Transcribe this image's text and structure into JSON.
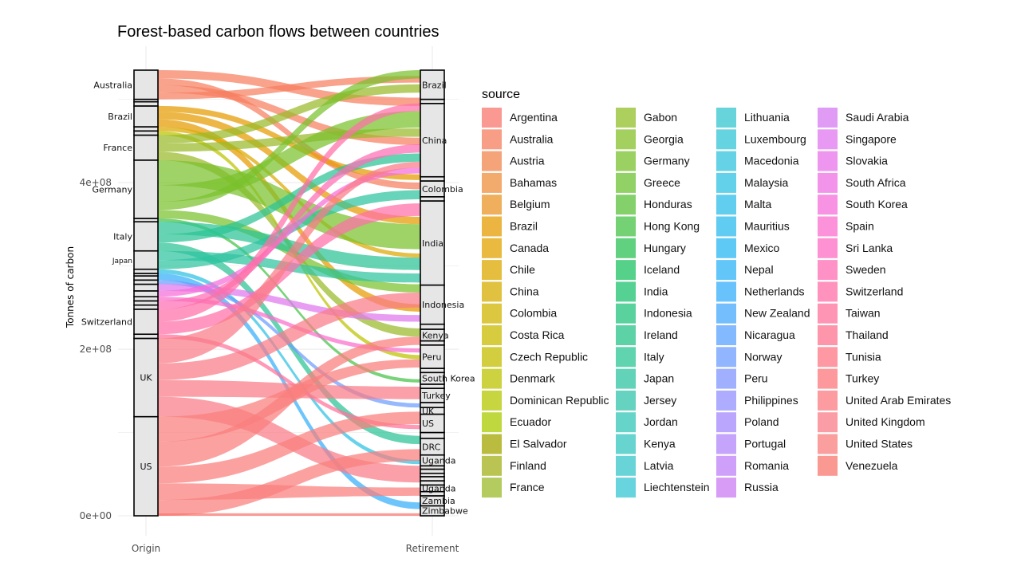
{
  "chart_data": {
    "type": "alluvial",
    "title": "Forest-based carbon flows between countries",
    "ylabel": "Tonnes of carbon",
    "xlabel": "",
    "x_axes": [
      "Origin",
      "Retirement"
    ],
    "ylim": [
      0,
      535000000
    ],
    "y_ticks": [
      {
        "value": 0,
        "label": "0e+00"
      },
      {
        "value": 200000000,
        "label": "2e+08"
      },
      {
        "value": 400000000,
        "label": "4e+08"
      }
    ],
    "grid": true,
    "legend": {
      "title": "source",
      "position": "right"
    },
    "origin_strata": [
      {
        "label": "US",
        "from": 0,
        "to": 119000000
      },
      {
        "label": "UK",
        "from": 119000000,
        "to": 213000000
      },
      {
        "label": "",
        "from": 213000000,
        "to": 218000000
      },
      {
        "label": "Switzerland",
        "from": 218000000,
        "to": 248000000
      },
      {
        "label": "",
        "from": 248000000,
        "to": 253000000
      },
      {
        "label": "",
        "from": 253000000,
        "to": 258000000
      },
      {
        "label": "",
        "from": 258000000,
        "to": 263000000
      },
      {
        "label": "",
        "from": 263000000,
        "to": 270000000
      },
      {
        "label": "",
        "from": 270000000,
        "to": 278000000
      },
      {
        "label": "",
        "from": 278000000,
        "to": 283000000
      },
      {
        "label": "",
        "from": 283000000,
        "to": 288000000
      },
      {
        "label": "",
        "from": 288000000,
        "to": 291000000
      },
      {
        "label": "",
        "from": 291000000,
        "to": 296000000
      },
      {
        "label": "Japan",
        "from": 296000000,
        "to": 318000000
      },
      {
        "label": "Italy",
        "from": 318000000,
        "to": 353000000
      },
      {
        "label": "",
        "from": 353000000,
        "to": 357000000
      },
      {
        "label": "Germany",
        "from": 357000000,
        "to": 427000000
      },
      {
        "label": "France",
        "from": 427000000,
        "to": 457000000
      },
      {
        "label": "",
        "from": 457000000,
        "to": 462000000
      },
      {
        "label": "",
        "from": 462000000,
        "to": 467000000
      },
      {
        "label": "Brazil",
        "from": 467000000,
        "to": 492000000
      },
      {
        "label": "",
        "from": 492000000,
        "to": 497000000
      },
      {
        "label": "",
        "from": 497000000,
        "to": 500000000
      },
      {
        "label": "Australia",
        "from": 500000000,
        "to": 535000000
      }
    ],
    "retirement_strata": [
      {
        "label": "Zimbabwe",
        "from": 0,
        "to": 12000000
      },
      {
        "label": "Zambia",
        "from": 12000000,
        "to": 24000000
      },
      {
        "label": "",
        "from": 24000000,
        "to": 29000000
      },
      {
        "label": "Uganda",
        "from": 29000000,
        "to": 37000000
      },
      {
        "label": "",
        "from": 37000000,
        "to": 42000000
      },
      {
        "label": "",
        "from": 42000000,
        "to": 47000000
      },
      {
        "label": "",
        "from": 47000000,
        "to": 51000000
      },
      {
        "label": "",
        "from": 51000000,
        "to": 56000000
      },
      {
        "label": "",
        "from": 56000000,
        "to": 60000000
      },
      {
        "label": "Uganda",
        "from": 60000000,
        "to": 73000000
      },
      {
        "label": "DRC",
        "from": 73000000,
        "to": 93000000
      },
      {
        "label": "",
        "from": 93000000,
        "to": 100000000
      },
      {
        "label": "US",
        "from": 100000000,
        "to": 122000000
      },
      {
        "label": "UK",
        "from": 122000000,
        "to": 130000000
      },
      {
        "label": "",
        "from": 130000000,
        "to": 136000000
      },
      {
        "label": "Turkey",
        "from": 136000000,
        "to": 153000000
      },
      {
        "label": "",
        "from": 153000000,
        "to": 158000000
      },
      {
        "label": "South Korea",
        "from": 158000000,
        "to": 172000000
      },
      {
        "label": "",
        "from": 172000000,
        "to": 177000000
      },
      {
        "label": "Peru",
        "from": 177000000,
        "to": 205000000
      },
      {
        "label": "",
        "from": 205000000,
        "to": 210000000
      },
      {
        "label": "Kenya",
        "from": 210000000,
        "to": 224000000
      },
      {
        "label": "",
        "from": 224000000,
        "to": 230000000
      },
      {
        "label": "Indonesia",
        "from": 230000000,
        "to": 277000000
      },
      {
        "label": "India",
        "from": 277000000,
        "to": 378000000
      },
      {
        "label": "",
        "from": 378000000,
        "to": 383000000
      },
      {
        "label": "Colombia",
        "from": 383000000,
        "to": 402000000
      },
      {
        "label": "",
        "from": 402000000,
        "to": 407000000
      },
      {
        "label": "China",
        "from": 407000000,
        "to": 495000000
      },
      {
        "label": "",
        "from": 495000000,
        "to": 500000000
      },
      {
        "label": "Brazil",
        "from": 500000000,
        "to": 535000000
      }
    ],
    "flows": [
      {
        "source": "Australia",
        "origin": [
          525000000,
          535000000
        ],
        "retirement": [
          492000000,
          502000000
        ]
      },
      {
        "source": "Australia",
        "origin": [
          517000000,
          525000000
        ],
        "retirement": [
          392000000,
          400000000
        ]
      },
      {
        "source": "Australia",
        "origin": [
          508000000,
          517000000
        ],
        "retirement": [
          445000000,
          454000000
        ]
      },
      {
        "source": "Australia",
        "origin": [
          500000000,
          508000000
        ],
        "retirement": [
          520000000,
          528000000
        ]
      },
      {
        "source": "Brazil",
        "origin": [
          485000000,
          492000000
        ],
        "retirement": [
          403000000,
          410000000
        ]
      },
      {
        "source": "Brazil",
        "origin": [
          476000000,
          485000000
        ],
        "retirement": [
          350000000,
          359000000
        ]
      },
      {
        "source": "Brazil",
        "origin": [
          467000000,
          476000000
        ],
        "retirement": [
          245000000,
          254000000
        ]
      },
      {
        "source": "Chile",
        "origin": [
          462000000,
          467000000
        ],
        "retirement": [
          310000000,
          315000000
        ]
      },
      {
        "source": "Denmark",
        "origin": [
          457000000,
          462000000
        ],
        "retirement": [
          188000000,
          193000000
        ]
      },
      {
        "source": "France",
        "origin": [
          447000000,
          457000000
        ],
        "retirement": [
          508000000,
          518000000
        ]
      },
      {
        "source": "France",
        "origin": [
          437000000,
          447000000
        ],
        "retirement": [
          455000000,
          465000000
        ]
      },
      {
        "source": "France",
        "origin": [
          427000000,
          437000000
        ],
        "retirement": [
          215000000,
          225000000
        ]
      },
      {
        "source": "Germany",
        "origin": [
          397000000,
          427000000
        ],
        "retirement": [
          320000000,
          350000000
        ]
      },
      {
        "source": "Germany",
        "origin": [
          377000000,
          397000000
        ],
        "retirement": [
          466000000,
          486000000
        ]
      },
      {
        "source": "Germany",
        "origin": [
          367000000,
          377000000
        ],
        "retirement": [
          525000000,
          535000000
        ]
      },
      {
        "source": "Germany",
        "origin": [
          357000000,
          367000000
        ],
        "retirement": [
          268000000,
          278000000
        ]
      },
      {
        "source": "Hong Kong",
        "origin": [
          353000000,
          357000000
        ],
        "retirement": [
          160000000,
          164000000
        ]
      },
      {
        "source": "Italy",
        "origin": [
          338000000,
          353000000
        ],
        "retirement": [
          295000000,
          310000000
        ]
      },
      {
        "source": "Italy",
        "origin": [
          328000000,
          338000000
        ],
        "retirement": [
          425000000,
          435000000
        ]
      },
      {
        "source": "Italy",
        "origin": [
          318000000,
          328000000
        ],
        "retirement": [
          86000000,
          96000000
        ]
      },
      {
        "source": "Japan",
        "origin": [
          307000000,
          318000000
        ],
        "retirement": [
          280000000,
          291000000
        ]
      },
      {
        "source": "Japan",
        "origin": [
          296000000,
          307000000
        ],
        "retirement": [
          380000000,
          391000000
        ]
      },
      {
        "source": "Malaysia",
        "origin": [
          291000000,
          296000000
        ],
        "retirement": [
          62000000,
          67000000
        ]
      },
      {
        "source": "Netherlands",
        "origin": [
          283000000,
          291000000
        ],
        "retirement": [
          8000000,
          16000000
        ]
      },
      {
        "source": "Norway",
        "origin": [
          278000000,
          283000000
        ],
        "retirement": [
          130000000,
          135000000
        ]
      },
      {
        "source": "Singapore",
        "origin": [
          270000000,
          278000000
        ],
        "retirement": [
          233000000,
          241000000
        ]
      },
      {
        "source": "South Korea",
        "origin": [
          263000000,
          270000000
        ],
        "retirement": [
          411000000,
          418000000
        ]
      },
      {
        "source": "Spain",
        "origin": [
          258000000,
          263000000
        ],
        "retirement": [
          196000000,
          201000000
        ]
      },
      {
        "source": "Sweden",
        "origin": [
          248000000,
          258000000
        ],
        "retirement": [
          436000000,
          446000000
        ]
      },
      {
        "source": "Switzerland",
        "origin": [
          233000000,
          248000000
        ],
        "retirement": [
          486000000,
          495000000
        ]
      },
      {
        "source": "Switzerland",
        "origin": [
          218000000,
          233000000
        ],
        "retirement": [
          360000000,
          375000000
        ]
      },
      {
        "source": "Taiwan",
        "origin": [
          213000000,
          218000000
        ],
        "retirement": [
          104000000,
          109000000
        ]
      },
      {
        "source": "United Kingdom",
        "origin": [
          183000000,
          213000000
        ],
        "retirement": [
          418000000,
          425000000
        ]
      },
      {
        "source": "United Kingdom",
        "origin": [
          163000000,
          183000000
        ],
        "retirement": [
          250000000,
          268000000
        ]
      },
      {
        "source": "United Kingdom",
        "origin": [
          143000000,
          163000000
        ],
        "retirement": [
          140000000,
          155000000
        ]
      },
      {
        "source": "United Kingdom",
        "origin": [
          119000000,
          143000000
        ],
        "retirement": [
          40000000,
          60000000
        ]
      },
      {
        "source": "United States",
        "origin": [
          89000000,
          119000000
        ],
        "retirement": [
          178000000,
          188000000
        ]
      },
      {
        "source": "United States",
        "origin": [
          59000000,
          89000000
        ],
        "retirement": [
          205000000,
          215000000
        ]
      },
      {
        "source": "United States",
        "origin": [
          39000000,
          59000000
        ],
        "retirement": [
          110000000,
          125000000
        ]
      },
      {
        "source": "United States",
        "origin": [
          19000000,
          39000000
        ],
        "retirement": [
          24000000,
          34000000
        ]
      },
      {
        "source": "United States",
        "origin": [
          0,
          19000000
        ],
        "retirement": [
          66000000,
          80000000
        ]
      },
      {
        "source": "Venezuela",
        "origin": [
          0,
          3000000
        ],
        "retirement": [
          0,
          3000000
        ]
      }
    ]
  },
  "legend_items": [
    {
      "label": "Argentina",
      "color": "#F8766D"
    },
    {
      "label": "Australia",
      "color": "#F67E5F"
    },
    {
      "label": "Austria",
      "color": "#F2864E"
    },
    {
      "label": "Bahamas",
      "color": "#EE8D3C"
    },
    {
      "label": "Belgium",
      "color": "#EA9426"
    },
    {
      "label": "Brazil",
      "color": "#E69B00"
    },
    {
      "label": "Canada",
      "color": "#E1A200"
    },
    {
      "label": "Chile",
      "color": "#DCA800"
    },
    {
      "label": "China",
      "color": "#D6AE00"
    },
    {
      "label": "Colombia",
      "color": "#D0B400"
    },
    {
      "label": "Costa Rica",
      "color": "#CAB900"
    },
    {
      "label": "Czech Republic",
      "color": "#C3BE00"
    },
    {
      "label": "Denmark",
      "color": "#BCC300"
    },
    {
      "label": "Dominican Republic",
      "color": "#B4C700"
    },
    {
      "label": "Ecuador",
      "color": "#ABCB00"
    },
    {
      "label": "El Salvador",
      "color": "#A3A500"
    },
    {
      "label": "Finland",
      "color": "#A2B019"
    },
    {
      "label": "France",
      "color": "#9ABA2A"
    },
    {
      "label": "Gabon",
      "color": "#90BF28"
    },
    {
      "label": "Georgia",
      "color": "#86C029"
    },
    {
      "label": "Germany",
      "color": "#7AC02D"
    },
    {
      "label": "Greece",
      "color": "#6CC133"
    },
    {
      "label": "Honduras",
      "color": "#5BC13B"
    },
    {
      "label": "Hong Kong",
      "color": "#45C246"
    },
    {
      "label": "Hungary",
      "color": "#2CC254"
    },
    {
      "label": "Iceland",
      "color": "#1DC262"
    },
    {
      "label": "India",
      "color": "#1CC36F"
    },
    {
      "label": "Indonesia",
      "color": "#21C37C"
    },
    {
      "label": "Ireland",
      "color": "#26C388"
    },
    {
      "label": "Italy",
      "color": "#2BC494"
    },
    {
      "label": "Japan",
      "color": "#2EC4A0"
    },
    {
      "label": "Jersey",
      "color": "#31C4AB"
    },
    {
      "label": "Jordan",
      "color": "#33C5B6"
    },
    {
      "label": "Kenya",
      "color": "#34C5C0"
    },
    {
      "label": "Latvia",
      "color": "#35C5CA"
    },
    {
      "label": "Liechtenstein",
      "color": "#35C5D3"
    },
    {
      "label": "Lithuania",
      "color": "#34C6D0"
    },
    {
      "label": "Luxembourg",
      "color": "#33C5D6"
    },
    {
      "label": "Macedonia",
      "color": "#31C3DD"
    },
    {
      "label": "Malaysia",
      "color": "#2FC1E3"
    },
    {
      "label": "Malta",
      "color": "#2DBEE9"
    },
    {
      "label": "Mauritius",
      "color": "#2BBBEE"
    },
    {
      "label": "Mexico",
      "color": "#2AB7F3"
    },
    {
      "label": "Nepal",
      "color": "#2DB3F7"
    },
    {
      "label": "Netherlands",
      "color": "#35AEFA"
    },
    {
      "label": "New Zealand",
      "color": "#45A8FC"
    },
    {
      "label": "Nicaragua",
      "color": "#59A2FD"
    },
    {
      "label": "Norway",
      "color": "#6C9CFE"
    },
    {
      "label": "Peru",
      "color": "#8096FE"
    },
    {
      "label": "Philippines",
      "color": "#9290FD"
    },
    {
      "label": "Poland",
      "color": "#A38AFC"
    },
    {
      "label": "Portugal",
      "color": "#B285FA"
    },
    {
      "label": "Romania",
      "color": "#BF80F7"
    },
    {
      "label": "Russia",
      "color": "#CB7BF4"
    },
    {
      "label": "Saudi Arabia",
      "color": "#D57BF2"
    },
    {
      "label": "Singapore",
      "color": "#DF77EF"
    },
    {
      "label": "Slovakia",
      "color": "#E873EA"
    },
    {
      "label": "South Africa",
      "color": "#EF70E4"
    },
    {
      "label": "South Korea",
      "color": "#F56ED9"
    },
    {
      "label": "Spain",
      "color": "#FA6DCD"
    },
    {
      "label": "Sri Lanka",
      "color": "#FC6CC1"
    },
    {
      "label": "Sweden",
      "color": "#FE6DB4"
    },
    {
      "label": "Switzerland",
      "color": "#FF6FA7"
    },
    {
      "label": "Taiwan",
      "color": "#FF719B"
    },
    {
      "label": "Thailand",
      "color": "#FE738F"
    },
    {
      "label": "Tunisia",
      "color": "#FD7584"
    },
    {
      "label": "Turkey",
      "color": "#FC777B"
    },
    {
      "label": "United Arab Emirates",
      "color": "#FB7A80"
    },
    {
      "label": "United Kingdom",
      "color": "#FA7C86"
    },
    {
      "label": "United States",
      "color": "#F97E7D"
    },
    {
      "label": "Venezuela",
      "color": "#F8766D"
    }
  ]
}
